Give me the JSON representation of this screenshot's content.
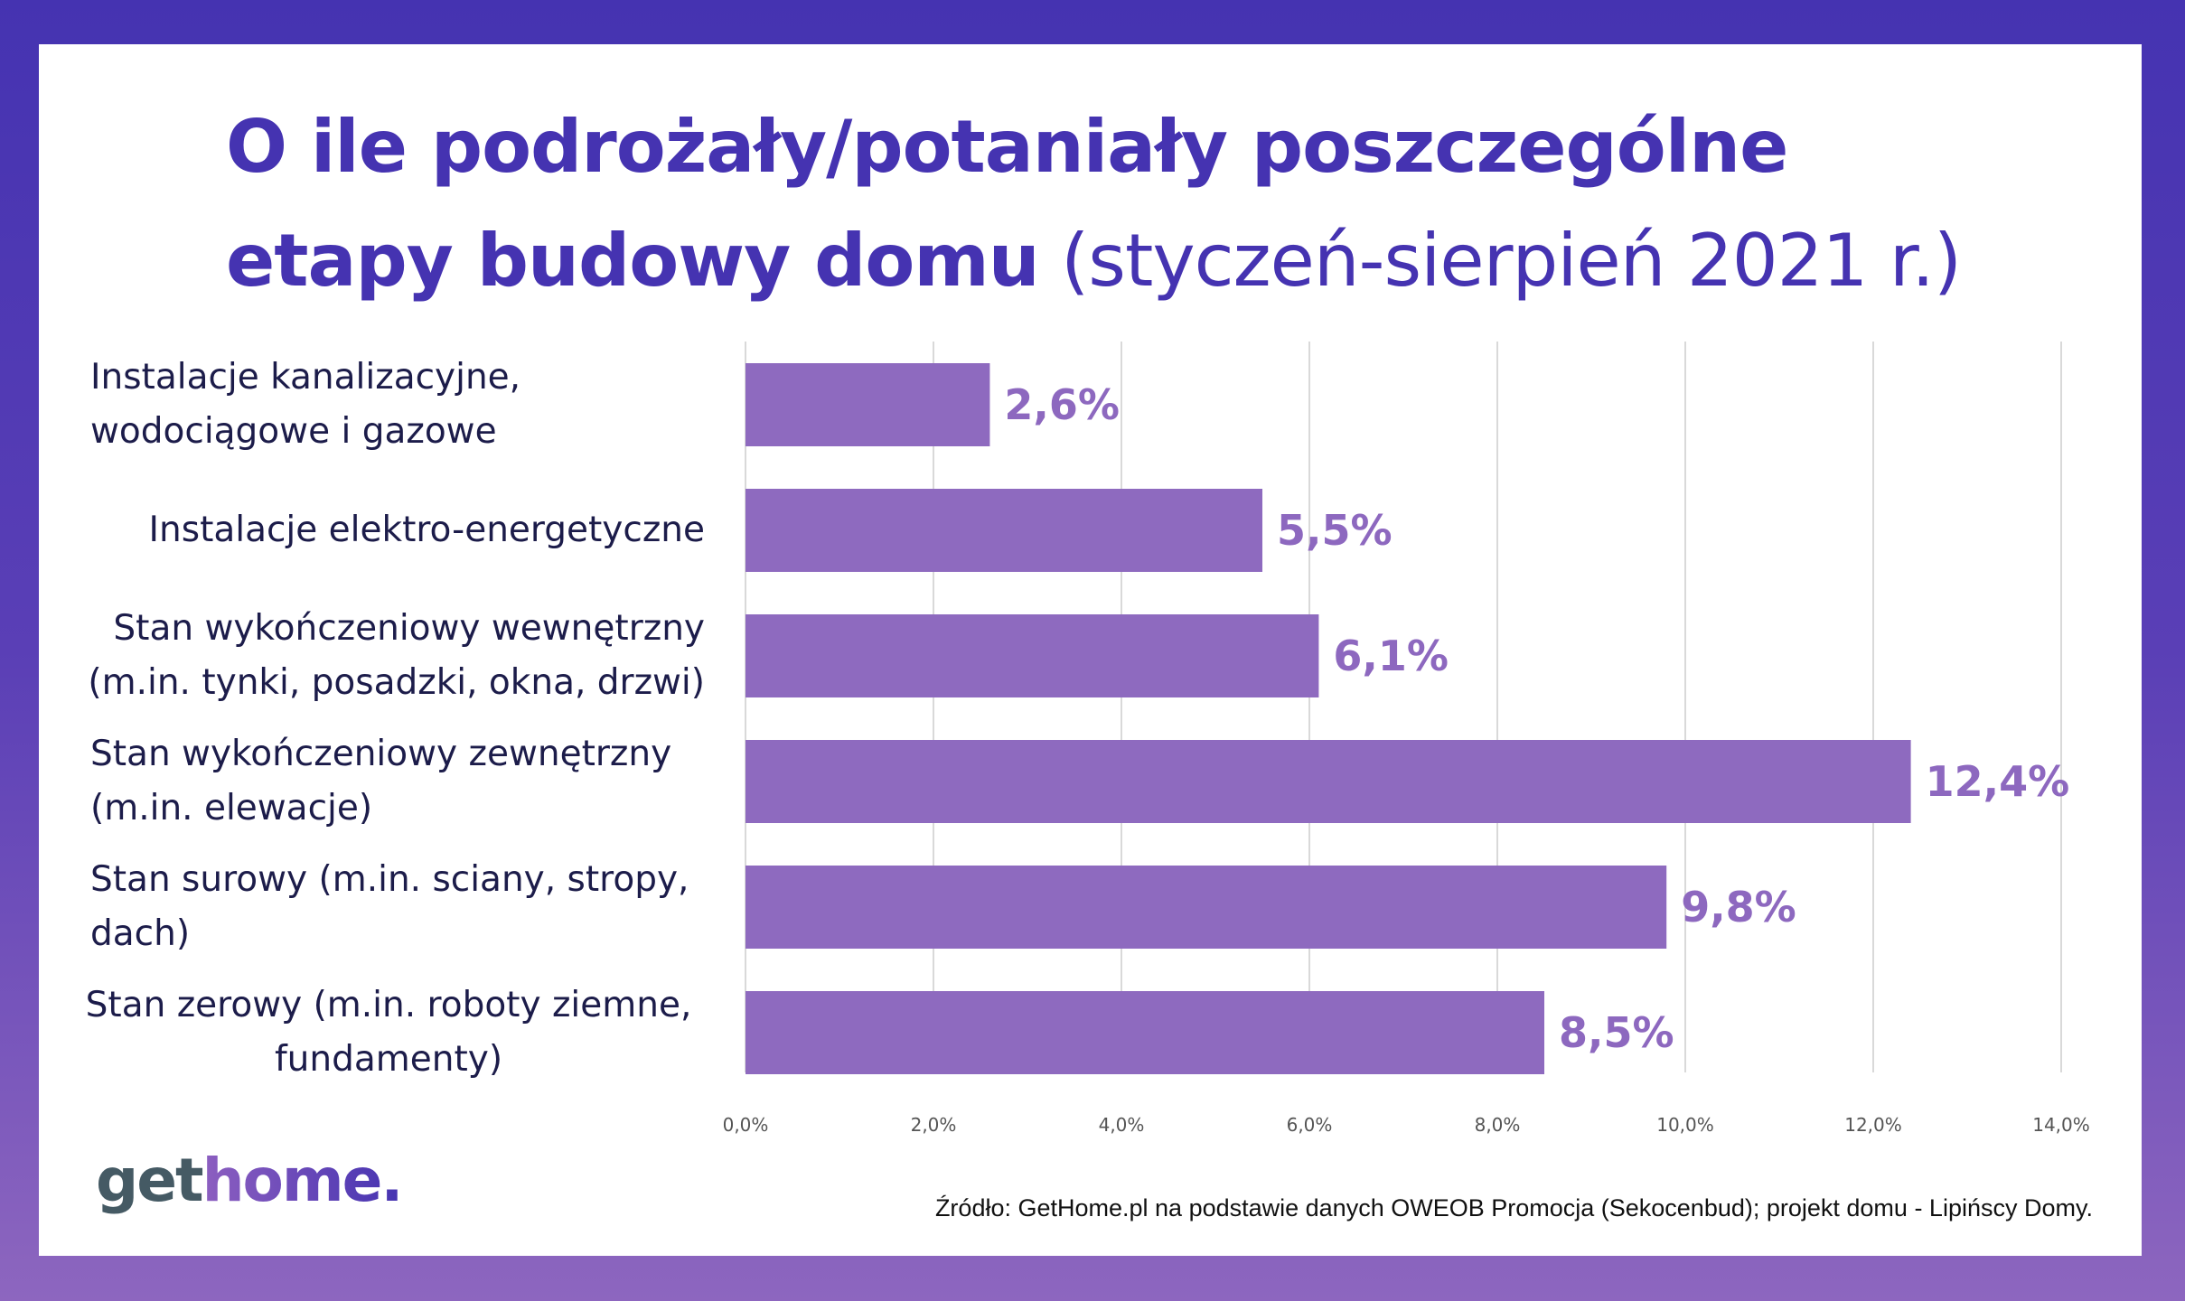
{
  "title": {
    "bold": "O ile podrożały/potaniały poszczególne etapy budowy domu",
    "regular": "(styczeń-sierpień 2021 r.)"
  },
  "chart_data": {
    "type": "bar",
    "orientation": "horizontal",
    "title": "O ile podrożały/potaniały poszczególne etapy budowy domu (styczeń-sierpień 2021 r.)",
    "categories": [
      "Instalacje kanalizacyjne, wodociągowe i gazowe",
      "Instalacje elektro-energetyczne",
      "Stan wykończeniowy wewnętrzny (m.in. tynki, posadzki, okna, drzwi)",
      "Stan wykończeniowy zewnętrzny (m.in. elewacje)",
      "Stan surowy (m.in. sciany, stropy, dach)",
      "Stan zerowy (m.in. roboty ziemne, fundamenty)"
    ],
    "values": [
      2.6,
      5.5,
      6.1,
      12.4,
      9.8,
      8.5
    ],
    "data_labels": [
      "2,6%",
      "5,5%",
      "6,1%",
      "12,4%",
      "9,8%",
      "8,5%"
    ],
    "xlim": [
      0,
      14
    ],
    "x_ticks": [
      "0,0%",
      "2,0%",
      "4,0%",
      "6,0%",
      "8,0%",
      "10,0%",
      "12,0%",
      "14,0%"
    ],
    "grid": "vertical",
    "bar_color": "#8e6abf",
    "label_color": "#8d68bf"
  },
  "category_lines": [
    [
      "Instalacje kanalizacyjne,",
      "wodociągowe i gazowe"
    ],
    [
      "Instalacje elektro-energetyczne"
    ],
    [
      "Stan wykończeniowy wewnętrzny",
      "(m.in. tynki, posadzki, okna, drzwi)"
    ],
    [
      "Stan wykończeniowy zewnętrzny",
      "(m.in. elewacje)"
    ],
    [
      "Stan surowy (m.in. sciany, stropy,",
      "dach)"
    ],
    [
      "Stan zerowy (m.in. roboty ziemne,",
      "fundamenty)"
    ]
  ],
  "logo": {
    "part1": "get",
    "part2": "home."
  },
  "source": "Źródło: GetHome.pl na podstawie danych OWEOB Promocja (Sekocenbud); projekt domu - Lipińscy Domy.",
  "colors": {
    "frame_top": "#4533b1",
    "frame_bottom": "#8d66bf",
    "title": "#4533b1"
  }
}
